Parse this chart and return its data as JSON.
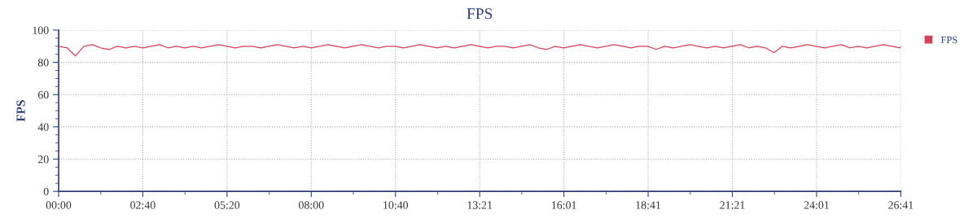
{
  "chart_data": {
    "type": "line",
    "title": "FPS",
    "ylabel": "FPS",
    "x": [
      0,
      16,
      32,
      48,
      64,
      80,
      96,
      112,
      128,
      144,
      160,
      176,
      192,
      208,
      224,
      240,
      256,
      272,
      288,
      304,
      320,
      336,
      352,
      368,
      384,
      400,
      416,
      432,
      448,
      464,
      480,
      496,
      512,
      528,
      544,
      560,
      576,
      592,
      608,
      624,
      640,
      656,
      672,
      688,
      704,
      720,
      736,
      752,
      768,
      784,
      800,
      816,
      832,
      848,
      864,
      880,
      896,
      912,
      928,
      944,
      960,
      976,
      992,
      1008,
      1024,
      1040,
      1056,
      1072,
      1088,
      1104,
      1120,
      1136,
      1152,
      1168,
      1184,
      1200,
      1216,
      1232,
      1248,
      1264,
      1280,
      1296,
      1312,
      1328,
      1344,
      1360,
      1376,
      1392,
      1408,
      1424,
      1440,
      1456,
      1472,
      1488,
      1504,
      1520,
      1536,
      1552,
      1568,
      1584,
      1600,
      1601
    ],
    "series": [
      {
        "name": "FPS",
        "color": "#d6405a",
        "values": [
          90,
          89,
          84,
          90,
          91,
          89,
          88,
          90,
          89,
          90,
          89,
          90,
          91,
          89,
          90,
          89,
          90,
          89,
          90,
          91,
          90,
          89,
          90,
          90,
          89,
          90,
          91,
          90,
          89,
          90,
          89,
          90,
          91,
          90,
          89,
          90,
          91,
          90,
          89,
          90,
          90,
          89,
          90,
          91,
          90,
          89,
          90,
          89,
          90,
          91,
          90,
          89,
          90,
          90,
          89,
          90,
          91,
          89,
          88,
          90,
          89,
          90,
          91,
          90,
          89,
          90,
          91,
          90,
          89,
          90,
          90,
          88,
          90,
          89,
          90,
          91,
          90,
          89,
          90,
          89,
          90,
          91,
          89,
          90,
          89,
          86,
          90,
          89,
          90,
          91,
          90,
          89,
          90,
          91,
          89,
          90,
          89,
          90,
          91,
          90,
          89,
          90
        ]
      }
    ],
    "xlim": [
      0,
      1601
    ],
    "xticks": [
      {
        "value": 0,
        "label": "00:00"
      },
      {
        "value": 160.1,
        "label": "02:40"
      },
      {
        "value": 320.2,
        "label": "05:20"
      },
      {
        "value": 480.3,
        "label": "08:00"
      },
      {
        "value": 640.4,
        "label": "10:40"
      },
      {
        "value": 800.5,
        "label": "13:21"
      },
      {
        "value": 960.6,
        "label": "16:01"
      },
      {
        "value": 1120.7,
        "label": "18:41"
      },
      {
        "value": 1280.8,
        "label": "21:21"
      },
      {
        "value": 1440.9,
        "label": "24:01"
      },
      {
        "value": 1601,
        "label": "26:41"
      }
    ],
    "ylim": [
      0,
      100
    ],
    "yticks": [
      0,
      20,
      40,
      60,
      80,
      100
    ],
    "grid": true,
    "legend": "top right",
    "marker": "none",
    "line_style": "solid"
  }
}
